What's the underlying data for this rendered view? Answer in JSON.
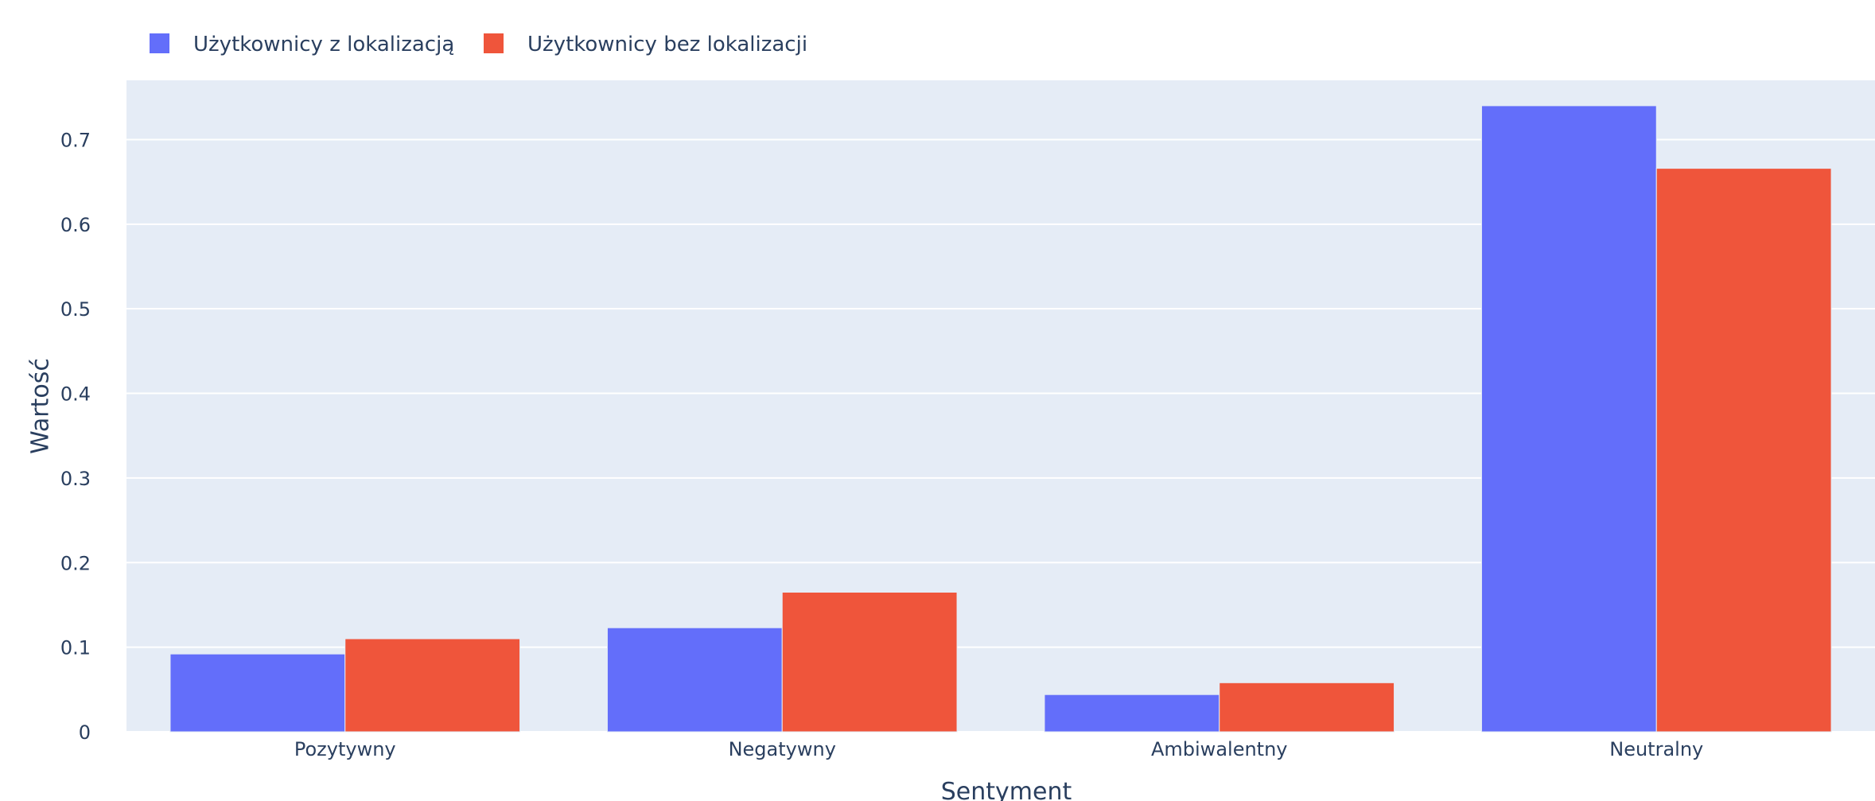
{
  "chart_data": {
    "type": "bar",
    "categories": [
      "Pozytywny",
      "Negatywny",
      "Ambiwalentny",
      "Neutralny"
    ],
    "series": [
      {
        "name": "Użytkownicy z lokalizacją",
        "color": "#636efa",
        "values": [
          0.092,
          0.123,
          0.044,
          0.74
        ]
      },
      {
        "name": "Użytkownicy bez lokalizacji",
        "color": "#ef553b",
        "values": [
          0.11,
          0.165,
          0.058,
          0.666
        ]
      }
    ],
    "xlabel": "Sentyment",
    "ylabel": "Wartość",
    "ylim": [
      0,
      0.77
    ],
    "yticks": [
      0,
      0.1,
      0.2,
      0.3,
      0.4,
      0.5,
      0.6,
      0.7
    ],
    "ytick_labels": [
      "0",
      "0.1",
      "0.2",
      "0.3",
      "0.4",
      "0.5",
      "0.6",
      "0.7"
    ],
    "grid": true,
    "legend_position": "top-left",
    "plot_background": "#e5ecf6",
    "grid_color": "#ffffff"
  }
}
